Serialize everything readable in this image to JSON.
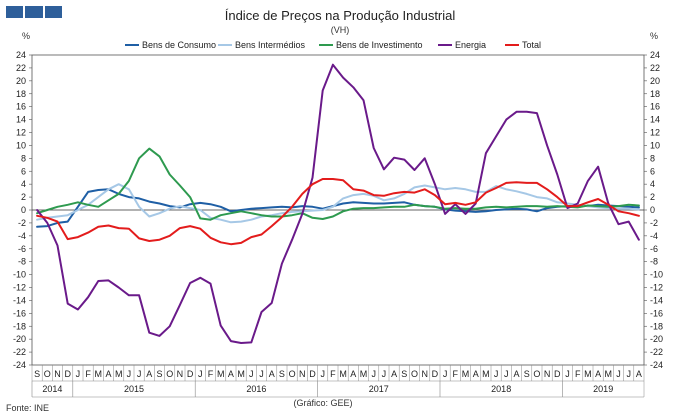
{
  "chart_data": {
    "type": "line",
    "title": "Índice de Preços na Produção Industrial",
    "subtitle": "(VH)",
    "ylabel_left": "%",
    "ylabel_right": "%",
    "ylim": [
      -24,
      24
    ],
    "yticks": [
      24,
      22,
      20,
      18,
      16,
      14,
      12,
      10,
      8,
      6,
      4,
      2,
      0,
      -2,
      -4,
      -6,
      -8,
      -10,
      -12,
      -14,
      -16,
      -18,
      -20,
      -22,
      -24
    ],
    "month_labels": [
      "S",
      "O",
      "N",
      "D",
      "J",
      "F",
      "M",
      "A",
      "M",
      "J",
      "J",
      "A",
      "S",
      "O",
      "N",
      "D",
      "J",
      "F",
      "M",
      "A",
      "M",
      "J",
      "J",
      "A",
      "S",
      "O",
      "N",
      "D",
      "J",
      "F",
      "M",
      "A",
      "M",
      "J",
      "J",
      "A",
      "S",
      "O",
      "N",
      "D",
      "J",
      "F",
      "M",
      "A",
      "M",
      "J",
      "J",
      "A",
      "S",
      "O",
      "N",
      "D",
      "J",
      "F",
      "M",
      "A",
      "M",
      "J",
      "J",
      "A"
    ],
    "year_labels": [
      {
        "label": "2014",
        "start": 0,
        "end": 3
      },
      {
        "label": "2015",
        "start": 4,
        "end": 15
      },
      {
        "label": "2016",
        "start": 16,
        "end": 27
      },
      {
        "label": "2017",
        "start": 28,
        "end": 39
      },
      {
        "label": "2018",
        "start": 40,
        "end": 51
      },
      {
        "label": "2019",
        "start": 52,
        "end": 59
      }
    ],
    "series": [
      {
        "name": "Bens de Consumo",
        "color": "#1f5fa5",
        "values": [
          -2.6,
          -2.5,
          -2.0,
          -1.8,
          0.5,
          2.8,
          3.1,
          3.2,
          2.5,
          2.0,
          1.8,
          1.3,
          1.0,
          0.6,
          0.4,
          0.9,
          1.1,
          0.9,
          0.5,
          -0.2,
          0.0,
          0.2,
          0.3,
          0.4,
          0.5,
          0.4,
          0.6,
          0.5,
          0.2,
          0.6,
          1.0,
          1.2,
          1.1,
          1.0,
          1.0,
          1.1,
          1.2,
          0.8,
          0.6,
          0.5,
          0.1,
          -0.1,
          -0.2,
          -0.3,
          -0.2,
          0.0,
          0.1,
          0.2,
          0.1,
          -0.2,
          0.3,
          0.5,
          0.6,
          0.7,
          0.6,
          0.8,
          0.7,
          0.6,
          0.5,
          0.4
        ]
      },
      {
        "name": "Bens Intermédios",
        "color": "#a6c8e6",
        "values": [
          -1.5,
          -1.2,
          -1.0,
          -0.8,
          0.0,
          0.8,
          2.0,
          3.2,
          4.0,
          3.2,
          0.5,
          -1.0,
          -0.5,
          0.2,
          0.6,
          0.3,
          0.0,
          -1.2,
          -1.5,
          -1.9,
          -1.8,
          -1.5,
          -1.0,
          -0.8,
          -0.5,
          -0.3,
          -0.2,
          -0.1,
          0.0,
          0.5,
          1.8,
          2.3,
          2.5,
          2.2,
          1.5,
          1.8,
          2.5,
          3.5,
          3.8,
          3.5,
          3.2,
          3.4,
          3.2,
          2.8,
          2.8,
          3.7,
          3.2,
          2.9,
          2.5,
          2.0,
          1.8,
          1.2,
          1.0,
          0.8,
          0.6,
          0.4,
          0.3,
          0.2,
          0.2,
          0.1
        ]
      },
      {
        "name": "Bens de Investimento",
        "color": "#2e9a4f",
        "values": [
          -0.5,
          0.0,
          0.5,
          0.8,
          1.2,
          0.8,
          0.5,
          1.5,
          2.5,
          4.5,
          8.0,
          9.5,
          8.3,
          5.5,
          3.8,
          2.0,
          -1.3,
          -1.5,
          -0.8,
          -0.5,
          -0.2,
          -0.5,
          -0.8,
          -1.0,
          -1.0,
          -0.8,
          -0.5,
          -1.2,
          -1.4,
          -1.0,
          -0.2,
          0.2,
          0.3,
          0.3,
          0.4,
          0.5,
          0.5,
          0.8,
          0.6,
          0.5,
          0.2,
          0.3,
          0.2,
          0.2,
          0.4,
          0.5,
          0.4,
          0.5,
          0.6,
          0.6,
          0.5,
          0.6,
          0.5,
          0.4,
          0.7,
          0.6,
          0.5,
          0.6,
          0.8,
          0.7
        ]
      },
      {
        "name": "Energia",
        "color": "#6a1a8a",
        "values": [
          0.0,
          -2.0,
          -5.5,
          -14.5,
          -15.4,
          -13.5,
          -11.0,
          -10.9,
          -12.0,
          -13.2,
          -13.2,
          -19.0,
          -19.5,
          -18.0,
          -14.7,
          -11.3,
          -10.5,
          -11.4,
          -17.9,
          -20.3,
          -20.6,
          -20.5,
          -15.8,
          -14.4,
          -8.3,
          -4.6,
          -0.6,
          5.0,
          18.5,
          22.5,
          20.5,
          19.0,
          17.0,
          9.6,
          6.3,
          8.1,
          7.8,
          6.2,
          8.0,
          4.0,
          -0.6,
          0.9,
          -0.6,
          1.0,
          8.8,
          11.4,
          14.0,
          15.2,
          15.2,
          15.0,
          10.0,
          5.5,
          0.3,
          1.0,
          4.5,
          6.7,
          1.0,
          -2.2,
          -1.8,
          -4.6
        ]
      },
      {
        "name": "Total",
        "color": "#e31c1c",
        "values": [
          -0.9,
          -1.2,
          -1.8,
          -4.5,
          -4.2,
          -3.5,
          -2.6,
          -2.4,
          -2.8,
          -2.9,
          -4.4,
          -4.8,
          -4.6,
          -4.0,
          -2.8,
          -2.5,
          -2.9,
          -4.3,
          -5.0,
          -5.3,
          -5.1,
          -4.2,
          -3.8,
          -2.5,
          -1.1,
          0.5,
          2.5,
          4.0,
          4.8,
          4.8,
          4.6,
          3.2,
          3.0,
          2.3,
          2.2,
          2.6,
          2.8,
          2.7,
          3.2,
          2.3,
          0.9,
          1.1,
          0.8,
          1.2,
          2.7,
          3.4,
          4.2,
          4.3,
          4.2,
          4.2,
          3.2,
          2.0,
          0.6,
          0.6,
          1.2,
          1.7,
          0.8,
          -0.2,
          -0.5,
          -0.9
        ]
      }
    ],
    "footer_left": "Fonte: INE",
    "footer_center": "(Gráfico: GEE)"
  }
}
